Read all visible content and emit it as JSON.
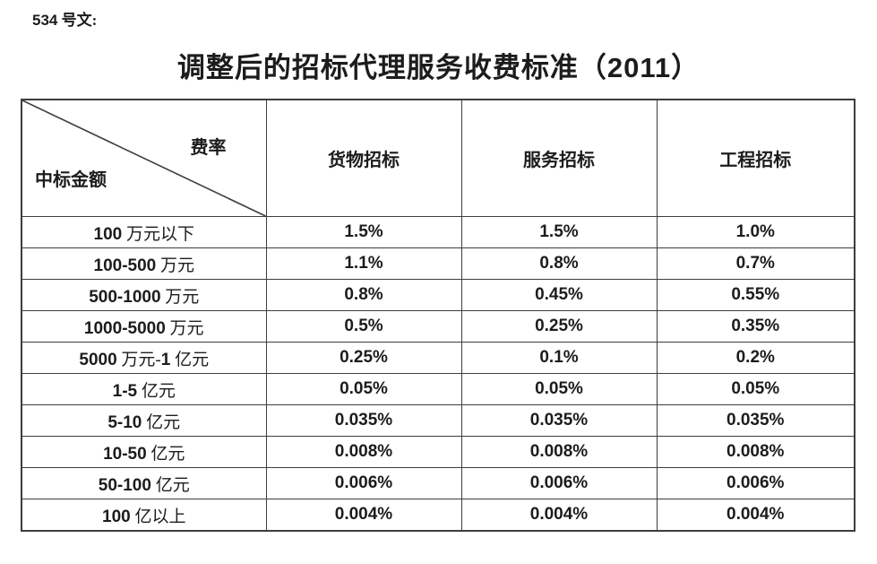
{
  "doc_label": "534 号文:",
  "title": "调整后的招标代理服务收费标准（2011）",
  "table": {
    "corner": {
      "top_right": "费率",
      "bottom_left": "中标金额"
    },
    "columns": [
      "货物招标",
      "服务招标",
      "工程招标"
    ],
    "rows": [
      {
        "label": "100 万元以下",
        "values": [
          "1.5%",
          "1.5%",
          "1.0%"
        ]
      },
      {
        "label": "100-500 万元",
        "values": [
          "1.1%",
          "0.8%",
          "0.7%"
        ]
      },
      {
        "label": "500-1000 万元",
        "values": [
          "0.8%",
          "0.45%",
          "0.55%"
        ]
      },
      {
        "label": "1000-5000 万元",
        "values": [
          "0.5%",
          "0.25%",
          "0.35%"
        ]
      },
      {
        "label": "5000 万元-1 亿元",
        "values": [
          "0.25%",
          "0.1%",
          "0.2%"
        ]
      },
      {
        "label": "1-5 亿元",
        "values": [
          "0.05%",
          "0.05%",
          "0.05%"
        ]
      },
      {
        "label": "5-10 亿元",
        "values": [
          "0.035%",
          "0.035%",
          "0.035%"
        ]
      },
      {
        "label": "10-50 亿元",
        "values": [
          "0.008%",
          "0.008%",
          "0.008%"
        ]
      },
      {
        "label": "50-100 亿元",
        "values": [
          "0.006%",
          "0.006%",
          "0.006%"
        ]
      },
      {
        "label": "100 亿以上",
        "values": [
          "0.004%",
          "0.004%",
          "0.004%"
        ]
      }
    ]
  },
  "colors": {
    "text": "#1c1c1c",
    "border": "#3d3d3d",
    "background": "#ffffff"
  }
}
